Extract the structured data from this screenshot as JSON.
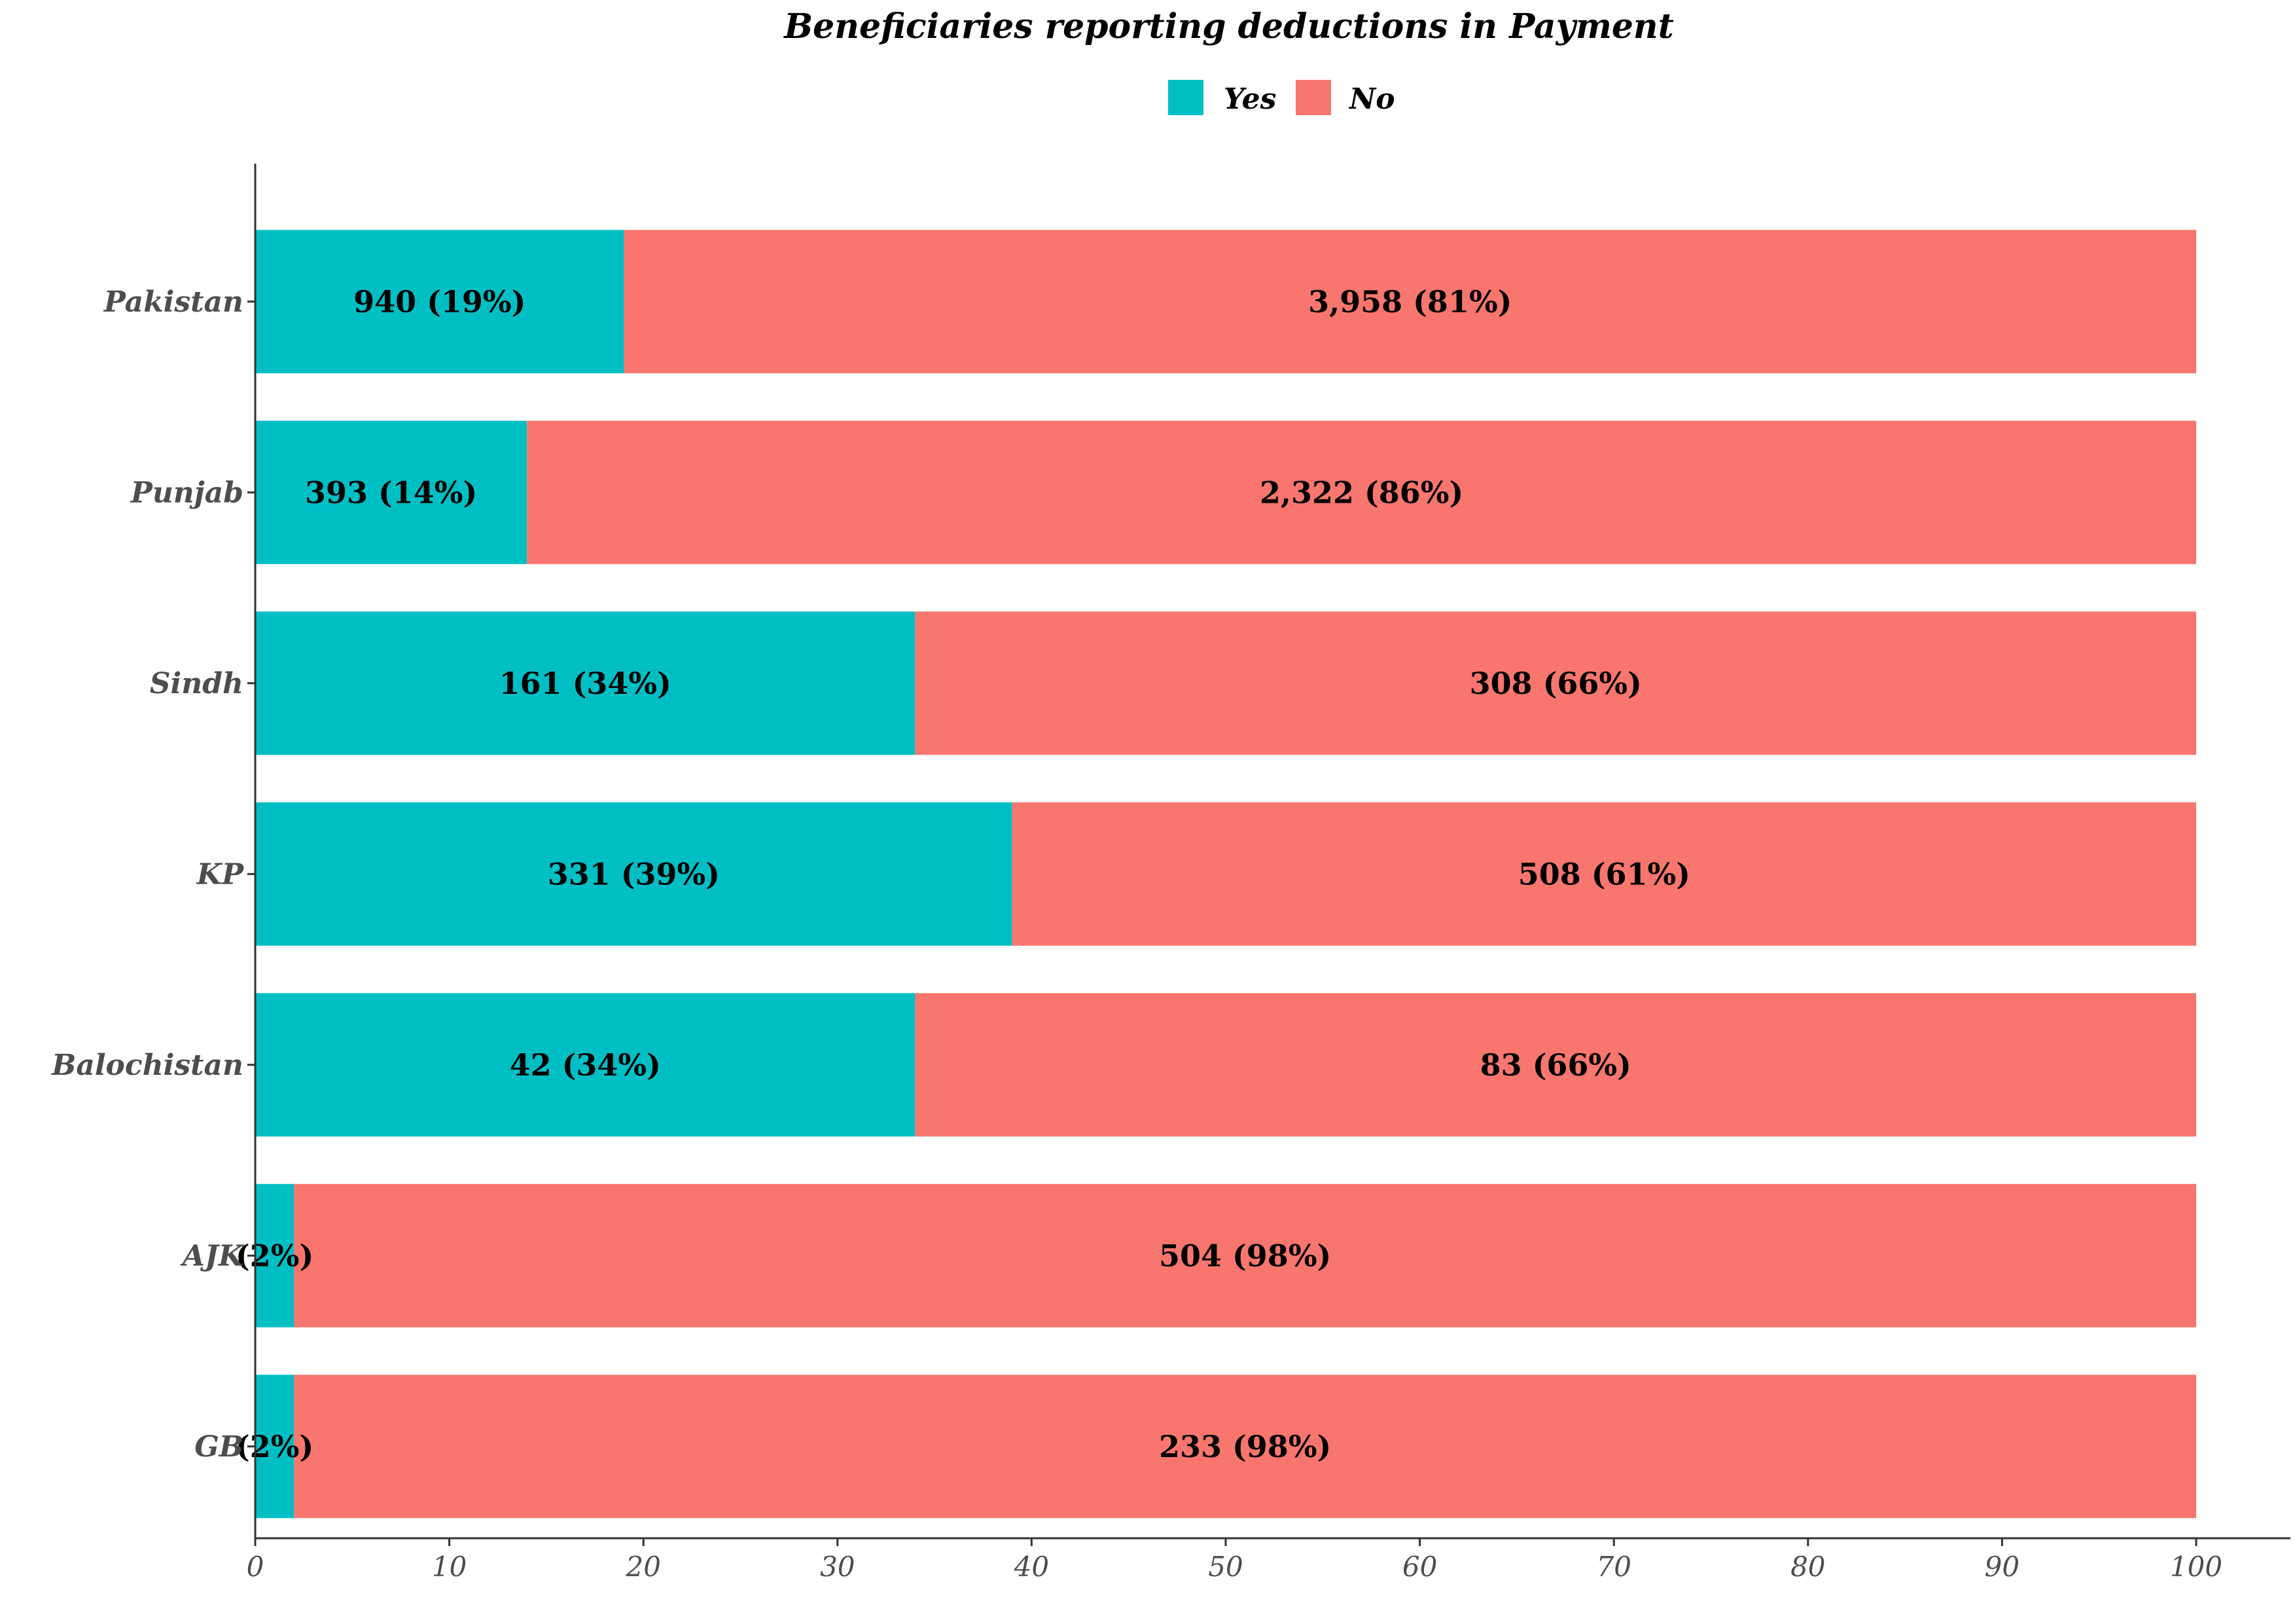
{
  "chart_data": {
    "type": "bar",
    "orientation": "horizontal",
    "stacked": true,
    "title": "Beneficiaries reporting deductions in Payment",
    "xlabel": "",
    "ylabel": "",
    "xlim": [
      0,
      100
    ],
    "xticks": [
      "0",
      "10",
      "20",
      "30",
      "40",
      "50",
      "60",
      "70",
      "80",
      "90",
      "100"
    ],
    "grid": false,
    "legend_position": "top",
    "categories": [
      "Pakistan",
      "Punjab",
      "Sindh",
      "KP",
      "Balochistan",
      "AJK",
      "GB"
    ],
    "series": [
      {
        "name": "Yes",
        "color": "#00BFC4",
        "values": [
          19,
          14,
          34,
          39,
          34,
          2,
          2
        ],
        "labels": [
          "940 (19%)",
          "393 (14%)",
          "161 (34%)",
          "331 (39%)",
          "42 (34%)",
          "(2%)",
          "(2%)"
        ]
      },
      {
        "name": "No",
        "color": "#F8766D",
        "values": [
          81,
          86,
          66,
          61,
          66,
          98,
          98
        ],
        "labels": [
          "3,958 (81%)",
          "2,322 (86%)",
          "308 (66%)",
          "508 (61%)",
          "83 (66%)",
          "504 (98%)",
          "233 (98%)"
        ]
      }
    ]
  }
}
